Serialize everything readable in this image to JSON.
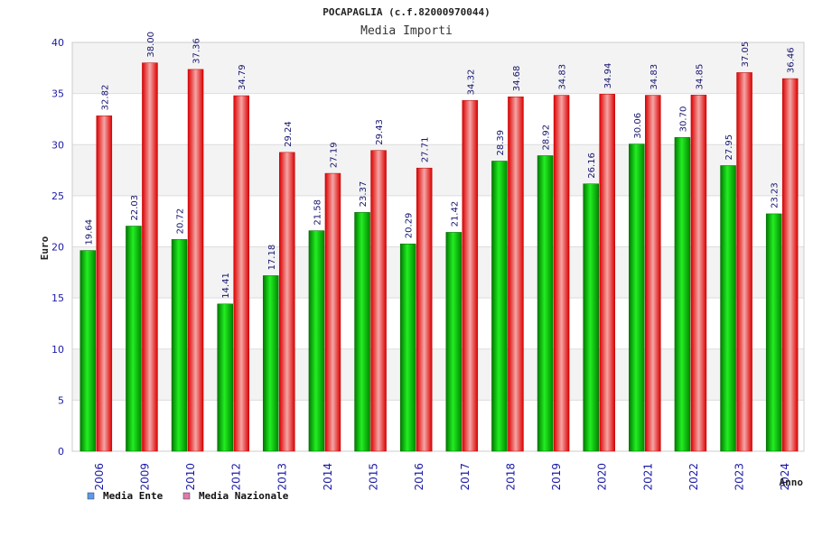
{
  "chart_data": {
    "type": "bar",
    "title": "POCAPAGLIA (c.f.82000970044)",
    "subtitle": "Media Importi",
    "xlabel": "Anno",
    "ylabel": "Euro",
    "ylim": [
      0,
      40
    ],
    "yticks": [
      0,
      5,
      10,
      15,
      20,
      25,
      30,
      35,
      40
    ],
    "grid": true,
    "legend_position": "bottom-left",
    "categories": [
      "2006",
      "2009",
      "2010",
      "2012",
      "2013",
      "2014",
      "2015",
      "2016",
      "2017",
      "2018",
      "2019",
      "2020",
      "2021",
      "2022",
      "2023",
      "2024"
    ],
    "series": [
      {
        "name": "Media Ente",
        "color": "#00bb00",
        "legend_color": "#5b9bea",
        "values": [
          19.64,
          22.03,
          20.72,
          14.41,
          17.18,
          21.58,
          23.37,
          20.29,
          21.42,
          28.39,
          28.92,
          26.16,
          30.06,
          30.7,
          27.95,
          23.23
        ],
        "labels": [
          "19.64",
          "22.03",
          "20.72",
          "14.41",
          "17.18",
          "21.58",
          "23.37",
          "20.29",
          "21.42",
          "28.39",
          "28.92",
          "26.16",
          "30.06",
          "30.70",
          "27.95",
          "23.23"
        ]
      },
      {
        "name": "Media Nazionale",
        "color": "#ee1111",
        "legend_color": "#e07aa8",
        "values": [
          32.82,
          38.0,
          37.36,
          34.79,
          29.24,
          27.19,
          29.43,
          27.71,
          34.32,
          34.68,
          34.83,
          34.94,
          34.83,
          34.85,
          37.05,
          36.46
        ],
        "labels": [
          "32.82",
          "38.00",
          "37.36",
          "34.79",
          "29.24",
          "27.19",
          "29.43",
          "27.71",
          "34.32",
          "34.68",
          "34.83",
          "34.94",
          "34.83",
          "34.85",
          "37.05",
          "36.46"
        ]
      }
    ]
  }
}
